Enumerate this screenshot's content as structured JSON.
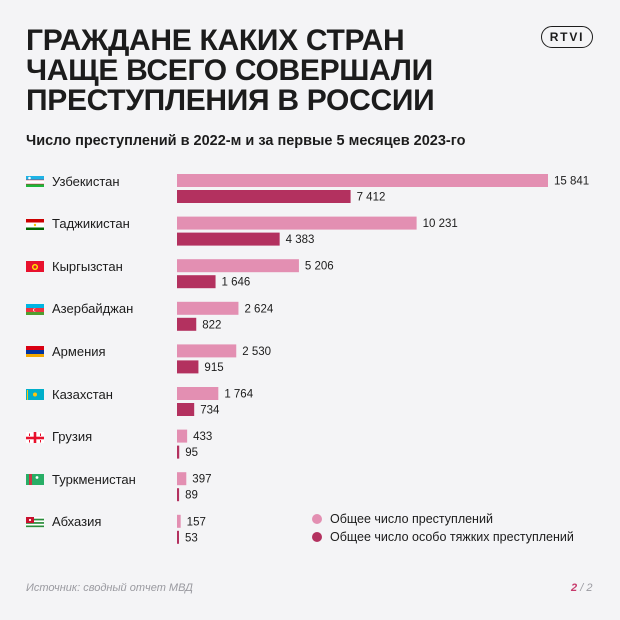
{
  "header": {
    "title_lines": [
      "ГРАЖДАНЕ КАКИХ СТРАН",
      "ЧАЩЕ ВСЕГО СОВЕРШАЛИ",
      "ПРЕСТУПЛЕНИЯ В РОССИИ"
    ],
    "logo": "RTVI"
  },
  "footer": {
    "source": "Источник: сводный отчет МВД",
    "page_current": "2",
    "page_sep": "/",
    "page_total": "2"
  },
  "colors": {
    "total": "#e38fb2",
    "grave": "#b3315f",
    "background": "#f4f4f6"
  },
  "chart_data": {
    "type": "bar",
    "orientation": "horizontal",
    "title": "Число преступлений в 2022-м и за первые 5 месяцев 2023-го",
    "categories": [
      "Узбекистан",
      "Таджикистан",
      "Кыргызстан",
      "Азербайджан",
      "Армения",
      "Казахстан",
      "Грузия",
      "Туркменистан",
      "Абхазия"
    ],
    "flags": [
      "uzbekistan-flag",
      "tajikistan-flag",
      "kyrgyzstan-flag",
      "azerbaijan-flag",
      "armenia-flag",
      "kazakhstan-flag",
      "georgia-flag",
      "turkmenistan-flag",
      "abkhazia-flag"
    ],
    "series": [
      {
        "name": "Общее число преступлений",
        "values": [
          15841,
          10231,
          5206,
          2624,
          2530,
          1764,
          433,
          397,
          157
        ],
        "labels": [
          "15 841",
          "10 231",
          "5 206",
          "2 624",
          "2 530",
          "1 764",
          "433",
          "397",
          "157"
        ]
      },
      {
        "name": "Общее число особо тяжких преступлений",
        "values": [
          7412,
          4383,
          1646,
          822,
          915,
          734,
          95,
          89,
          53
        ],
        "labels": [
          "7 412",
          "4 383",
          "1 646",
          "822",
          "915",
          "734",
          "95",
          "89",
          "53"
        ]
      }
    ],
    "xlim": [
      0,
      15841
    ],
    "grid": false,
    "legend_position": "bottom-right"
  }
}
